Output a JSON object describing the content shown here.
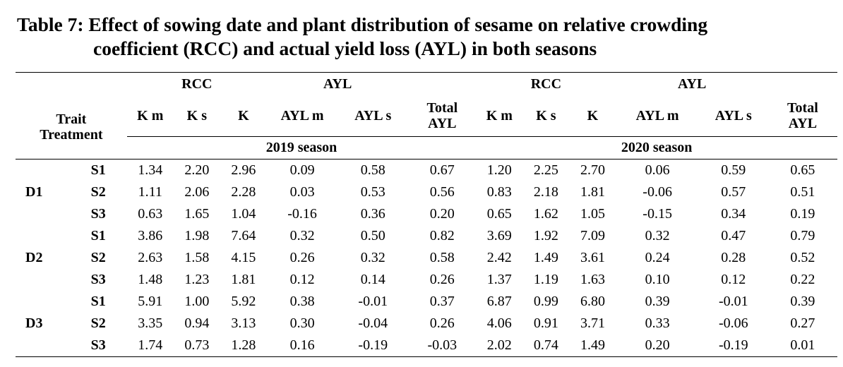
{
  "title": {
    "line1": "Table 7: Effect of sowing date and plant distribution of sesame on relative crowding",
    "line2": "coefficient (RCC) and actual yield loss (AYL) in both seasons"
  },
  "header": {
    "rcc": "RCC",
    "ayl": "AYL",
    "trait": "Trait",
    "treatment": "Treatment",
    "columns": [
      "K m",
      "K s",
      "K",
      "AYL m",
      "AYL s",
      "Total",
      "K m",
      "K s",
      "K",
      "AYL m",
      "AYL s",
      "Total"
    ],
    "total_sub": "AYL",
    "season_2019": "2019 season",
    "season_2020": "2020 season"
  },
  "rows": [
    {
      "group": "",
      "treatment": "S1",
      "values": [
        "1.34",
        "2.20",
        "2.96",
        "0.09",
        "0.58",
        "0.67",
        "1.20",
        "2.25",
        "2.70",
        "0.06",
        "0.59",
        "0.65"
      ]
    },
    {
      "group": "D1",
      "treatment": "S2",
      "values": [
        "1.11",
        "2.06",
        "2.28",
        "0.03",
        "0.53",
        "0.56",
        "0.83",
        "2.18",
        "1.81",
        "-0.06",
        "0.57",
        "0.51"
      ]
    },
    {
      "group": "",
      "treatment": "S3",
      "values": [
        "0.63",
        "1.65",
        "1.04",
        "-0.16",
        "0.36",
        "0.20",
        "0.65",
        "1.62",
        "1.05",
        "-0.15",
        "0.34",
        "0.19"
      ]
    },
    {
      "group": "",
      "treatment": "S1",
      "values": [
        "3.86",
        "1.98",
        "7.64",
        "0.32",
        "0.50",
        "0.82",
        "3.69",
        "1.92",
        "7.09",
        "0.32",
        "0.47",
        "0.79"
      ]
    },
    {
      "group": "D2",
      "treatment": "S2",
      "values": [
        "2.63",
        "1.58",
        "4.15",
        "0.26",
        "0.32",
        "0.58",
        "2.42",
        "1.49",
        "3.61",
        "0.24",
        "0.28",
        "0.52"
      ]
    },
    {
      "group": "",
      "treatment": "S3",
      "values": [
        "1.48",
        "1.23",
        "1.81",
        "0.12",
        "0.14",
        "0.26",
        "1.37",
        "1.19",
        "1.63",
        "0.10",
        "0.12",
        "0.22"
      ]
    },
    {
      "group": "",
      "treatment": "S1",
      "values": [
        "5.91",
        "1.00",
        "5.92",
        "0.38",
        "-0.01",
        "0.37",
        "6.87",
        "0.99",
        "6.80",
        "0.39",
        "-0.01",
        "0.39"
      ]
    },
    {
      "group": "D3",
      "treatment": "S2",
      "values": [
        "3.35",
        "0.94",
        "3.13",
        "0.30",
        "-0.04",
        "0.26",
        "4.06",
        "0.91",
        "3.71",
        "0.33",
        "-0.06",
        "0.27"
      ]
    },
    {
      "group": "",
      "treatment": "S3",
      "values": [
        "1.74",
        "0.73",
        "1.28",
        "0.16",
        "-0.19",
        "-0.03",
        "2.02",
        "0.74",
        "1.49",
        "0.20",
        "-0.19",
        "0.01"
      ]
    }
  ]
}
